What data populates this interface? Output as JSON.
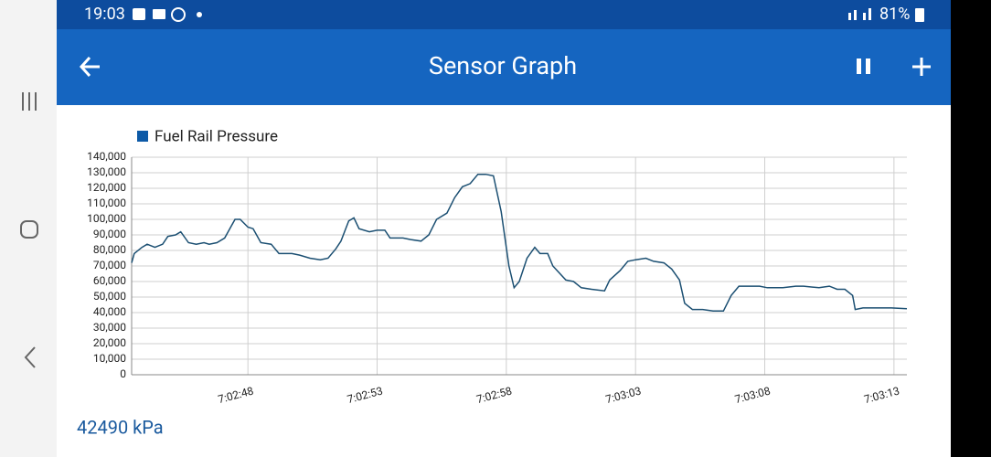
{
  "status_bar": {
    "time": "19:03",
    "battery": "81%"
  },
  "app_bar": {
    "title": "Sensor Graph"
  },
  "chart_data": {
    "type": "line",
    "x": [
      163.5,
      163.6,
      163.9,
      164.1,
      164.4,
      164.7,
      164.9,
      165.2,
      165.4,
      165.7,
      166.0,
      166.3,
      166.5,
      166.8,
      167.1,
      167.5,
      167.7,
      168.0,
      168.2,
      168.5,
      168.9,
      169.2,
      169.7,
      170.0,
      170.4,
      170.8,
      171.1,
      171.4,
      171.6,
      171.9,
      172.1,
      172.3,
      172.7,
      173.0,
      173.3,
      173.5,
      174.0,
      174.3,
      174.7,
      175.0,
      175.3,
      175.7,
      176.0,
      176.3,
      176.6,
      176.9,
      177.2,
      177.5,
      177.8,
      178.1,
      178.3,
      178.5,
      178.8,
      179.1,
      179.3,
      179.6,
      179.8,
      180.3,
      180.6,
      180.9,
      181.3,
      181.8,
      182.0,
      182.4,
      182.7,
      183.0,
      183.4,
      183.7,
      184.1,
      184.4,
      184.7,
      184.9,
      185.2,
      185.6,
      186.0,
      186.4,
      186.7,
      187.0,
      187.4,
      187.8,
      188.1,
      188.7,
      189.2,
      189.5,
      190.1,
      190.5,
      190.8,
      191.1,
      191.4,
      191.5,
      191.8,
      192.4,
      192.9,
      193.5
    ],
    "series": [
      {
        "name": "Fuel Rail Pressure",
        "color": "#1b4f72",
        "values": [
          72000,
          78000,
          82000,
          84000,
          82000,
          84000,
          89000,
          90000,
          92000,
          85000,
          84000,
          85000,
          84000,
          85000,
          88000,
          100000,
          100000,
          95000,
          94000,
          85000,
          84000,
          78000,
          78000,
          77000,
          75000,
          74000,
          75000,
          81000,
          86000,
          99000,
          101000,
          94000,
          92000,
          93000,
          93000,
          88000,
          88000,
          87000,
          86000,
          90000,
          100000,
          104000,
          114000,
          121000,
          123000,
          129000,
          129000,
          128000,
          105000,
          70000,
          56000,
          60000,
          75000,
          82000,
          78000,
          78000,
          70000,
          61000,
          60000,
          56000,
          55000,
          54000,
          61000,
          67000,
          73000,
          74000,
          75000,
          73000,
          72000,
          68000,
          61000,
          46000,
          42000,
          42000,
          41000,
          41000,
          51000,
          57000,
          57000,
          57000,
          56000,
          56000,
          57000,
          57000,
          56000,
          57000,
          55000,
          55000,
          51000,
          42000,
          43000,
          43000,
          43000,
          42490
        ]
      }
    ],
    "legend_color": "#0d5aa7",
    "xlim": [
      163.5,
      193.5
    ],
    "xticks": [
      {
        "value": 168,
        "label": "7:02:48"
      },
      {
        "value": 173,
        "label": "7:02:53"
      },
      {
        "value": 178,
        "label": "7:02:58"
      },
      {
        "value": 183,
        "label": "7:03:03"
      },
      {
        "value": 188,
        "label": "7:03:08"
      },
      {
        "value": 193,
        "label": "7:03:13"
      }
    ],
    "ylim": [
      0,
      140000
    ],
    "yticks": [
      0,
      {
        "value": 10000,
        "label": "10,000"
      },
      {
        "value": 20000,
        "label": "20,000"
      },
      {
        "value": 30000,
        "label": "30,000"
      },
      {
        "value": 40000,
        "label": "40,000"
      },
      {
        "value": 50000,
        "label": "50,000"
      },
      {
        "value": 60000,
        "label": "60,000"
      },
      {
        "value": 70000,
        "label": "70,000"
      },
      {
        "value": 80000,
        "label": "80,000"
      },
      {
        "value": 90000,
        "label": "90,000"
      },
      {
        "value": 100000,
        "label": "100,000"
      },
      {
        "value": 110000,
        "label": "110,000"
      },
      {
        "value": 120000,
        "label": "120,000"
      },
      {
        "value": 130000,
        "label": "130,000"
      },
      {
        "value": 140000,
        "label": "140,000"
      }
    ],
    "grid": true
  },
  "reading": "42490 kPa"
}
